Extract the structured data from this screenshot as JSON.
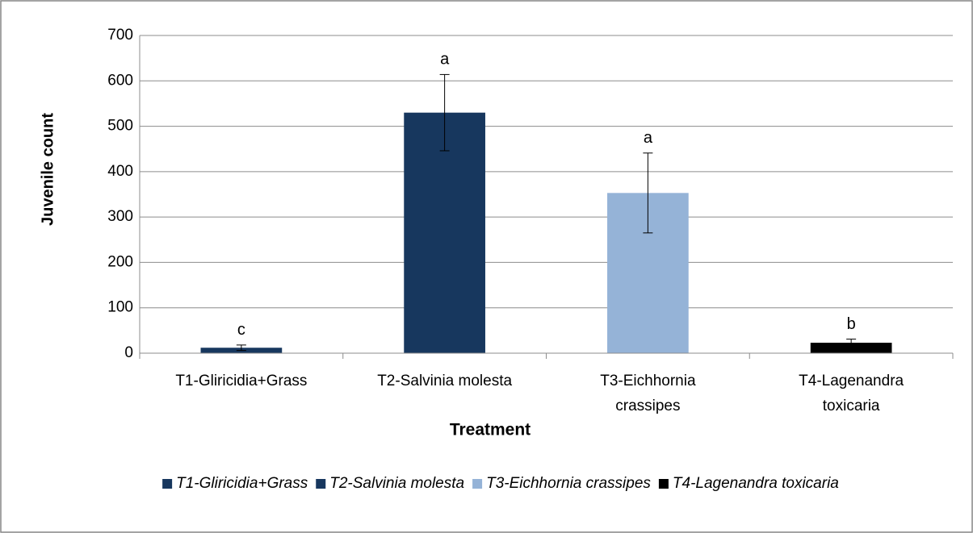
{
  "chart_data": {
    "type": "bar",
    "x_label": "Treatment",
    "y_label": "Juvenile count",
    "categories": [
      "T1-Gliricidia+Grass",
      "T2-Salvinia molesta",
      "T3-Eichhornia crassipes",
      "T4-Lagenandra toxicaria"
    ],
    "values": [
      12,
      530,
      353,
      23
    ],
    "errors": [
      6,
      84,
      88,
      8
    ],
    "annotations": [
      "c",
      "a",
      "a",
      "b"
    ],
    "colors": [
      "#17375e",
      "#17375e",
      "#95b3d7",
      "#000000"
    ],
    "ylim": [
      0,
      700
    ],
    "yticks": [
      0,
      100,
      200,
      300,
      400,
      500,
      600,
      700
    ],
    "grid": true,
    "legend": "bottom"
  }
}
